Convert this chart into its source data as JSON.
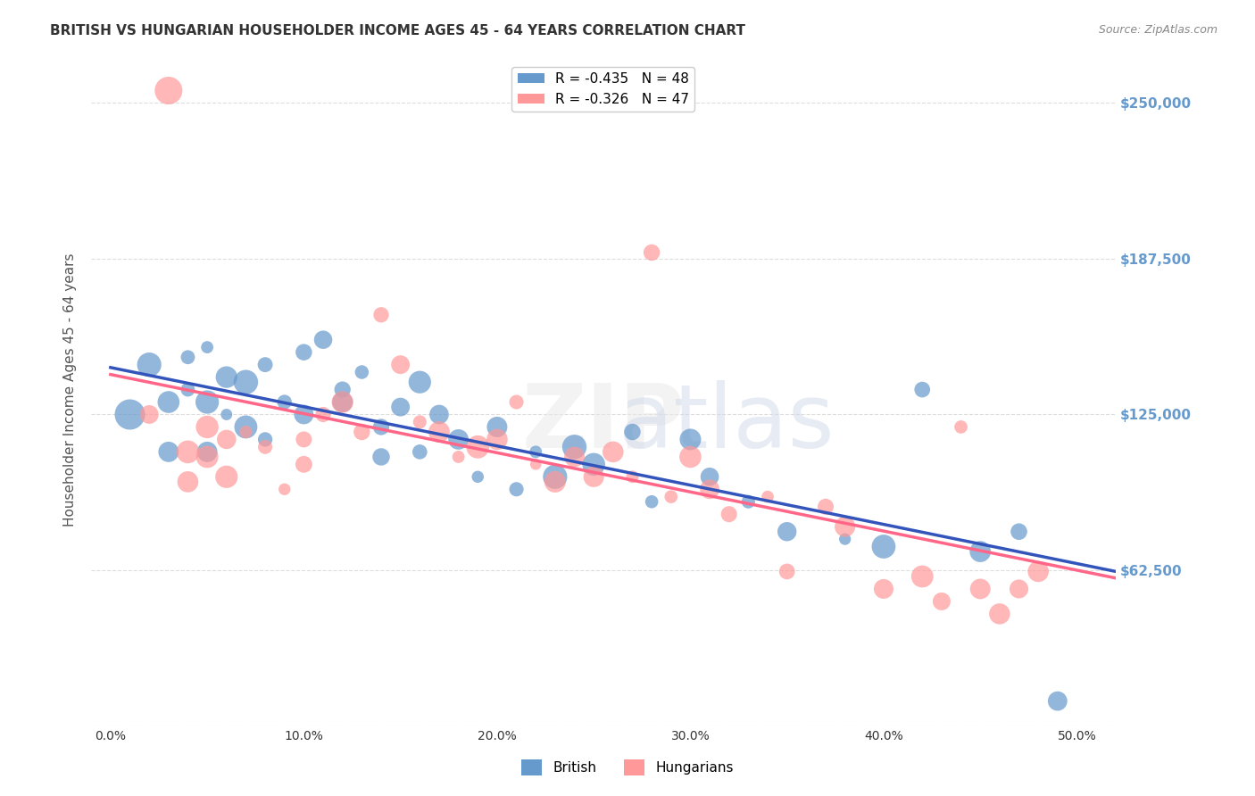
{
  "title": "BRITISH VS HUNGARIAN HOUSEHOLDER INCOME AGES 45 - 64 YEARS CORRELATION CHART",
  "source": "Source: ZipAtlas.com",
  "xlabel_ticks": [
    "0.0%",
    "10.0%",
    "20.0%",
    "30.0%",
    "40.0%",
    "50.0%"
  ],
  "xlabel_vals": [
    0.0,
    0.1,
    0.2,
    0.3,
    0.4,
    0.5
  ],
  "ylabel": "Householder Income Ages 45 - 64 years",
  "ylabel_right_ticks": [
    "$250,000",
    "$187,500",
    "$125,000",
    "$62,500"
  ],
  "ylabel_right_vals": [
    250000,
    187500,
    125000,
    62500
  ],
  "ylim": [
    0,
    270000
  ],
  "xlim": [
    -0.01,
    0.52
  ],
  "legend_blue": "R = -0.435   N = 48",
  "legend_pink": "R = -0.326   N = 47",
  "legend_label_blue": "British",
  "legend_label_pink": "Hungarians",
  "watermark": "ZIPatlas",
  "british_x": [
    0.01,
    0.02,
    0.03,
    0.03,
    0.04,
    0.04,
    0.05,
    0.05,
    0.05,
    0.06,
    0.06,
    0.07,
    0.07,
    0.08,
    0.08,
    0.09,
    0.1,
    0.1,
    0.11,
    0.12,
    0.12,
    0.13,
    0.14,
    0.14,
    0.15,
    0.16,
    0.16,
    0.17,
    0.18,
    0.19,
    0.2,
    0.21,
    0.22,
    0.23,
    0.24,
    0.25,
    0.27,
    0.28,
    0.3,
    0.31,
    0.33,
    0.35,
    0.38,
    0.4,
    0.42,
    0.45,
    0.47,
    0.49
  ],
  "british_y": [
    125000,
    145000,
    130000,
    110000,
    148000,
    135000,
    152000,
    130000,
    110000,
    140000,
    125000,
    138000,
    120000,
    145000,
    115000,
    130000,
    150000,
    125000,
    155000,
    135000,
    130000,
    142000,
    120000,
    108000,
    128000,
    138000,
    110000,
    125000,
    115000,
    100000,
    120000,
    95000,
    110000,
    100000,
    112000,
    105000,
    118000,
    90000,
    115000,
    100000,
    90000,
    78000,
    75000,
    72000,
    135000,
    70000,
    78000,
    10000
  ],
  "hungarian_x": [
    0.02,
    0.03,
    0.04,
    0.04,
    0.05,
    0.05,
    0.06,
    0.06,
    0.07,
    0.08,
    0.09,
    0.1,
    0.1,
    0.11,
    0.12,
    0.13,
    0.14,
    0.15,
    0.16,
    0.17,
    0.18,
    0.19,
    0.2,
    0.21,
    0.22,
    0.23,
    0.24,
    0.25,
    0.26,
    0.27,
    0.28,
    0.29,
    0.3,
    0.31,
    0.32,
    0.34,
    0.35,
    0.37,
    0.38,
    0.4,
    0.42,
    0.43,
    0.44,
    0.45,
    0.46,
    0.47,
    0.48
  ],
  "hungarian_y": [
    125000,
    255000,
    110000,
    98000,
    120000,
    108000,
    115000,
    100000,
    118000,
    112000,
    95000,
    115000,
    105000,
    125000,
    130000,
    118000,
    165000,
    145000,
    122000,
    118000,
    108000,
    112000,
    115000,
    130000,
    105000,
    98000,
    108000,
    100000,
    110000,
    100000,
    190000,
    92000,
    108000,
    95000,
    85000,
    92000,
    62000,
    88000,
    80000,
    55000,
    60000,
    50000,
    120000,
    55000,
    45000,
    55000,
    62000
  ],
  "blue_color": "#6699CC",
  "pink_color": "#FF9999",
  "blue_line_color": "#3355BB",
  "pink_line_color": "#FF6688",
  "grid_color": "#DDDDDD",
  "background_color": "#FFFFFF",
  "title_color": "#333333",
  "axis_label_color": "#555555",
  "right_tick_color": "#6699CC"
}
